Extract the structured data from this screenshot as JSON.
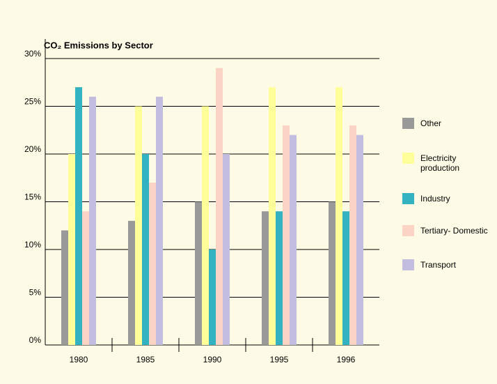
{
  "chart_data": {
    "type": "bar",
    "title": "CO₂ Emissions by Sector",
    "categories": [
      "1980",
      "1985",
      "1990",
      "1995",
      "1996"
    ],
    "series": [
      {
        "name": "Other",
        "color": "#999999",
        "values": [
          12,
          13,
          15,
          14,
          15
        ]
      },
      {
        "name": "Electricity production",
        "color": "#ffff99",
        "values": [
          20,
          25,
          25,
          27,
          27
        ]
      },
      {
        "name": "Industry",
        "color": "#33b3c1",
        "values": [
          27,
          20,
          10,
          14,
          14
        ]
      },
      {
        "name": "Tertiary- Domestic",
        "color": "#fcd4c6",
        "values": [
          14,
          17,
          29,
          23,
          23
        ]
      },
      {
        "name": "Transport",
        "color": "#c3bde0",
        "values": [
          26,
          26,
          20,
          22,
          22
        ]
      }
    ],
    "ylim": [
      0,
      30
    ],
    "yticks": [
      {
        "value": 0,
        "label": "0%"
      },
      {
        "value": 5,
        "label": "5%"
      },
      {
        "value": 10,
        "label": "10%"
      },
      {
        "value": 15,
        "label": "15%"
      },
      {
        "value": 20,
        "label": "20%"
      },
      {
        "value": 25,
        "label": "25%"
      },
      {
        "value": 30,
        "label": "30%"
      }
    ],
    "grid": true,
    "legend": "right"
  }
}
